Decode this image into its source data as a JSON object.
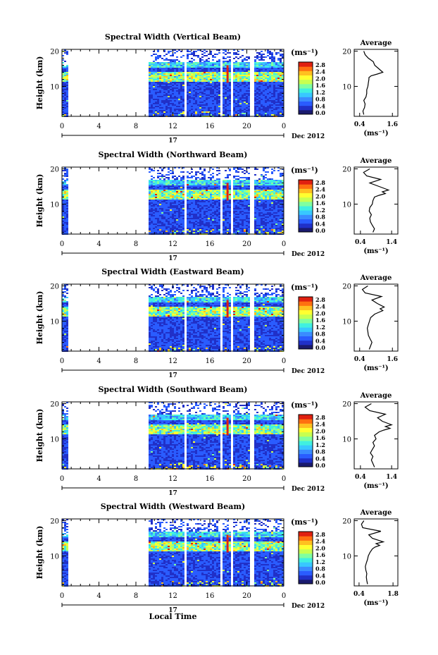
{
  "figure": {
    "xlabel": "Local Time",
    "date_label": "Dec 2012",
    "day_label": "17",
    "unit_label": "(ms⁻¹)",
    "average_title": "Average",
    "ylabel": "Height (km)",
    "colorbar_ticks": [
      "2.8",
      "2.4",
      "2.0",
      "1.6",
      "1.2",
      "0.8",
      "0.4",
      "0.0"
    ],
    "colormap": [
      "#1a1a6e",
      "#2030c8",
      "#2a5cff",
      "#3a8cff",
      "#38c8ff",
      "#40f0e0",
      "#80ffa0",
      "#c8ff50",
      "#ffff30",
      "#ffc020",
      "#ff7010",
      "#e02010"
    ]
  },
  "chart_data": [
    {
      "type": "heatmap",
      "title": "Spectral Width (Vertical Beam)",
      "x_ticks": [
        "0",
        "4",
        "8",
        "12",
        "16",
        "20",
        "0"
      ],
      "xlim": [
        0,
        24
      ],
      "y_ticks": [
        "20",
        "10"
      ],
      "ylim": [
        1.5,
        20.5
      ],
      "gaps": [
        [
          0.6,
          9.3
        ]
      ],
      "stripes": [
        [
          13.1,
          13.3
        ],
        [
          17.1,
          17.3
        ],
        [
          17.6,
          17.8
        ],
        [
          18.1,
          18.3
        ],
        [
          20.3,
          20.6
        ]
      ],
      "average": {
        "x_ticks": [
          "0.4",
          "1.6"
        ],
        "xlim": [
          0.2,
          1.8
        ],
        "profile_x": [
          0.55,
          0.52,
          0.58,
          0.6,
          0.55,
          0.63,
          0.66,
          0.66,
          0.7,
          0.72,
          0.74,
          0.74,
          0.82,
          1.05,
          1.25,
          1.1,
          0.95,
          0.9,
          0.72,
          0.6,
          0.55
        ],
        "profile_y": [
          2,
          3,
          4,
          5,
          6,
          7,
          8,
          9,
          10,
          11,
          12,
          12.5,
          13,
          13.5,
          14,
          15,
          16,
          17,
          18,
          19,
          20
        ]
      }
    },
    {
      "type": "heatmap",
      "title": "Spectral Width (Northward Beam)",
      "x_ticks": [
        "0",
        "4",
        "8",
        "12",
        "16",
        "20",
        "0"
      ],
      "xlim": [
        0,
        24
      ],
      "y_ticks": [
        "20",
        "10"
      ],
      "ylim": [
        1.5,
        20.5
      ],
      "gaps": [
        [
          0.6,
          9.3
        ]
      ],
      "stripes": [
        [
          13.1,
          13.3
        ],
        [
          17.1,
          17.3
        ],
        [
          17.6,
          17.8
        ],
        [
          18.1,
          18.3
        ],
        [
          20.3,
          20.6
        ]
      ],
      "average": {
        "x_ticks": [
          "0.4",
          "1.4"
        ],
        "xlim": [
          0.2,
          1.6
        ],
        "profile_x": [
          0.8,
          0.85,
          0.78,
          0.72,
          0.7,
          0.75,
          0.68,
          0.7,
          0.78,
          0.8,
          0.85,
          1.0,
          1.2,
          1.1,
          1.3,
          1.0,
          0.7,
          1.05,
          0.6,
          0.5,
          0.7
        ],
        "profile_y": [
          2,
          3,
          4,
          5,
          6,
          7,
          8,
          9,
          10,
          11,
          12,
          12.5,
          13,
          13.5,
          14,
          15,
          16,
          17,
          18,
          19,
          20
        ]
      }
    },
    {
      "type": "heatmap",
      "title": "Spectral Width (Eastward Beam)",
      "x_ticks": [
        "0",
        "4",
        "8",
        "12",
        "16",
        "20",
        "0"
      ],
      "xlim": [
        0,
        24
      ],
      "y_ticks": [
        "20",
        "10"
      ],
      "ylim": [
        1.5,
        20.5
      ],
      "gaps": [
        [
          0.6,
          9.3
        ]
      ],
      "stripes": [
        [
          13.1,
          13.3
        ],
        [
          17.1,
          17.3
        ],
        [
          17.6,
          17.8
        ],
        [
          18.1,
          18.3
        ],
        [
          20.3,
          20.6
        ]
      ],
      "average": {
        "x_ticks": [
          "0.4",
          "1.6"
        ],
        "xlim": [
          0.2,
          1.8
        ],
        "profile_x": [
          0.75,
          0.8,
          0.85,
          0.78,
          0.72,
          0.7,
          0.68,
          0.72,
          0.76,
          0.8,
          0.95,
          1.1,
          1.25,
          1.15,
          1.3,
          1.05,
          0.85,
          1.2,
          0.6,
          0.5,
          0.7
        ],
        "profile_y": [
          2,
          3,
          4,
          5,
          6,
          7,
          8,
          9,
          10,
          11,
          12,
          12.5,
          13,
          13.5,
          14,
          15,
          16,
          17,
          18,
          19,
          20
        ]
      }
    },
    {
      "type": "heatmap",
      "title": "Spectral Width (Southward Beam)",
      "x_ticks": [
        "0",
        "4",
        "8",
        "12",
        "16",
        "20",
        "0"
      ],
      "xlim": [
        0,
        24
      ],
      "y_ticks": [
        "20",
        "10"
      ],
      "ylim": [
        1.5,
        20.5
      ],
      "gaps": [
        [
          0.6,
          9.3
        ]
      ],
      "stripes": [
        [
          13.1,
          13.3
        ],
        [
          17.1,
          17.3
        ],
        [
          17.6,
          17.8
        ],
        [
          18.1,
          18.3
        ],
        [
          20.3,
          20.6
        ]
      ],
      "average": {
        "x_ticks": [
          "0.4",
          "1.4"
        ],
        "xlim": [
          0.2,
          1.6
        ],
        "profile_x": [
          0.85,
          0.8,
          0.75,
          0.8,
          0.72,
          0.78,
          0.85,
          0.8,
          0.9,
          0.85,
          1.0,
          1.15,
          1.35,
          1.2,
          1.4,
          1.1,
          0.95,
          1.2,
          0.7,
          0.55,
          0.75
        ],
        "profile_y": [
          2,
          3,
          4,
          5,
          6,
          7,
          8,
          9,
          10,
          11,
          12,
          12.5,
          13,
          13.5,
          14,
          15,
          16,
          17,
          18,
          19,
          20
        ]
      }
    },
    {
      "type": "heatmap",
      "title": "Spectral Width (Westward Beam)",
      "x_ticks": [
        "0",
        "4",
        "8",
        "12",
        "16",
        "20",
        "0"
      ],
      "xlim": [
        0,
        24
      ],
      "y_ticks": [
        "20",
        "10"
      ],
      "ylim": [
        1.5,
        20.5
      ],
      "gaps": [
        [
          0.6,
          9.3
        ]
      ],
      "stripes": [
        [
          13.1,
          13.3
        ],
        [
          17.1,
          17.3
        ],
        [
          17.6,
          17.8
        ],
        [
          18.1,
          18.3
        ],
        [
          20.3,
          20.6
        ]
      ],
      "average": {
        "x_ticks": [
          "0.4",
          "1.8"
        ],
        "xlim": [
          0.2,
          2.0
        ],
        "profile_x": [
          0.75,
          0.72,
          0.7,
          0.72,
          0.68,
          0.66,
          0.7,
          0.75,
          0.78,
          0.85,
          0.95,
          1.05,
          1.25,
          1.1,
          1.4,
          0.95,
          0.8,
          1.3,
          0.55,
          0.5,
          0.6
        ],
        "profile_y": [
          2,
          3,
          4,
          5,
          6,
          7,
          8,
          9,
          10,
          11,
          12,
          12.5,
          13,
          13.5,
          14,
          15,
          16,
          17,
          18,
          19,
          20
        ]
      }
    }
  ]
}
